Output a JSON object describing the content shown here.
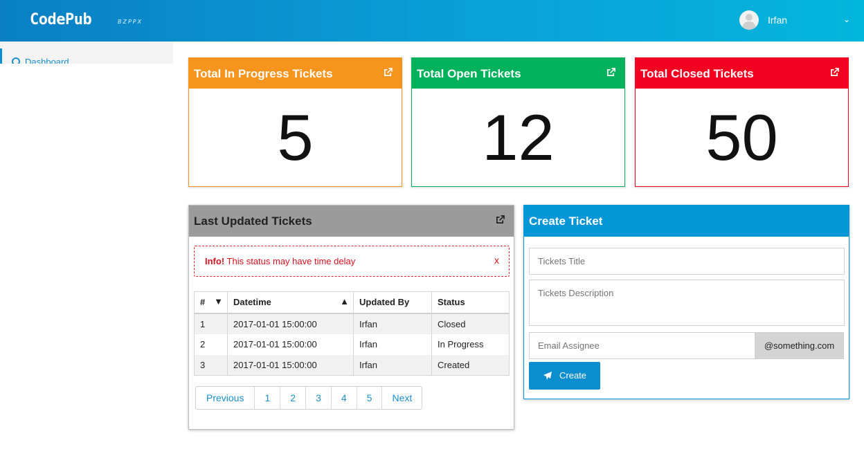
{
  "header": {
    "brand": "CodePub",
    "brand_sub": "BZPPX",
    "user_name": "Irfan"
  },
  "sidebar": {
    "items": [
      {
        "label": "Dashboard"
      }
    ]
  },
  "stats": [
    {
      "title": "Total In Progress Tickets",
      "value": "5",
      "color": "#f7941d"
    },
    {
      "title": "Total Open Tickets",
      "value": "12",
      "color": "#02b15b"
    },
    {
      "title": "Total Closed Tickets",
      "value": "50",
      "color": "#f40021"
    }
  ],
  "last_updated": {
    "title": "Last Updated Tickets",
    "header_color": "#9b9b9b",
    "alert": {
      "strong": "Info!",
      "text": " This status may have time delay",
      "close": "x"
    },
    "columns": [
      "#",
      "Datetime",
      "Updated By",
      "Status"
    ],
    "rows": [
      {
        "id": "1",
        "datetime": "2017-01-01 15:00:00",
        "by": "Irfan",
        "status": "Closed"
      },
      {
        "id": "2",
        "datetime": "2017-01-01 15:00:00",
        "by": "Irfan",
        "status": "In Progress"
      },
      {
        "id": "3",
        "datetime": "2017-01-01 15:00:00",
        "by": "Irfan",
        "status": "Created"
      }
    ],
    "pager": {
      "prev": "Previous",
      "pages": [
        "1",
        "2",
        "3",
        "4",
        "5"
      ],
      "next": "Next"
    }
  },
  "create_ticket": {
    "title": "Create Ticket",
    "header_color": "#0496d6",
    "title_placeholder": "Tickets Title",
    "description_placeholder": "Tickets Description",
    "email_placeholder": "Email Assignee",
    "email_suffix": "@something.com",
    "submit_label": "Create"
  }
}
